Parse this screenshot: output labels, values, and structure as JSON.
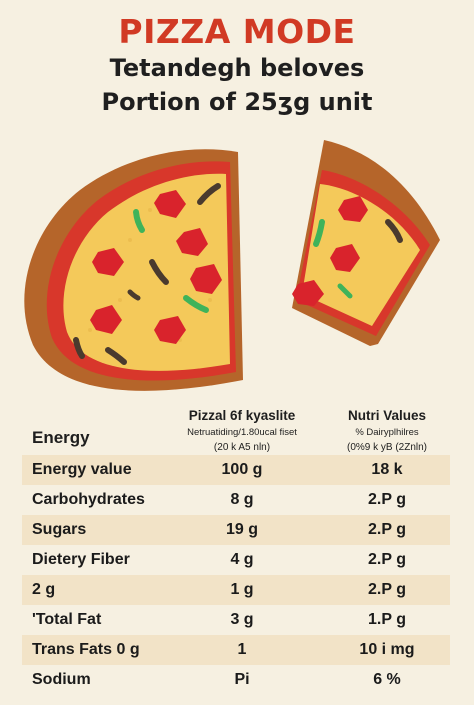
{
  "header": {
    "title": "PIZZA MODE",
    "subtitle_line1": "Tetandegh beloves",
    "subtitle_line2": "Portion of 25ʒg unit"
  },
  "table": {
    "row_header_label": "Energy",
    "columns": [
      {
        "title": "Pizzal 6f kyaslite",
        "subtitle": "Netruatiding/1.80ucal fiset",
        "note": "(20 k A5 nln)"
      },
      {
        "title": "Nutri Values",
        "subtitle": "% Dairyplhilres",
        "note": "(0%9 k yB (2Znln)"
      }
    ],
    "rows": [
      {
        "label": "Energy value",
        "v1": "100 g",
        "v2": "18 k"
      },
      {
        "label": "Carbohydrates",
        "v1": "8 g",
        "v2": "2.P g"
      },
      {
        "label": "Sugars",
        "v1": "19 g",
        "v2": "2.P g"
      },
      {
        "label": "Dietery Fiber",
        "v1": "4 g",
        "v2": "2.P g"
      },
      {
        "label": "2 g",
        "v1": "1 g",
        "v2": "2.P g"
      },
      {
        "label": "'Total Fat",
        "v1": "3 g",
        "v2": "1.P g"
      },
      {
        "label": "Trans Fats 0 g",
        "v1": "1",
        "v2": "10 i mg"
      },
      {
        "label": "Sodium",
        "v1": "Pi",
        "v2": "6 %"
      }
    ]
  },
  "colors": {
    "title": "#d13a24",
    "background": "#f6f0e1",
    "row_tint": "#f2e3c7",
    "crust": "#b5652a",
    "sauce": "#d8372b",
    "cheese": "#f4c95a",
    "pepperoni": "#d9232c",
    "olive": "#4a3a2e",
    "pepper": "#3fb35a"
  }
}
